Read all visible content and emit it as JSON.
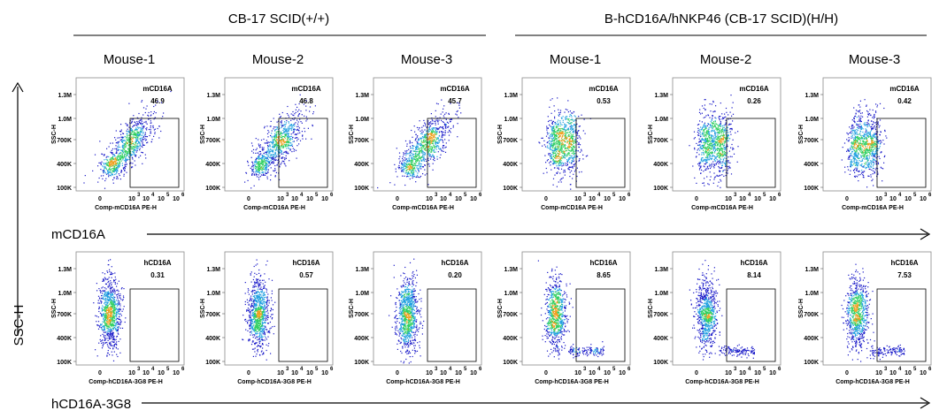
{
  "groups": [
    {
      "label": "CB-17 SCID(+/+)"
    },
    {
      "label": "B-hCD16A/hNKP46 (CB-17 SCID)(H/H)"
    }
  ],
  "mice": [
    "Mouse-1",
    "Mouse-2",
    "Mouse-3",
    "Mouse-1",
    "Mouse-2",
    "Mouse-3"
  ],
  "y_axis_side_label": "SSC-H",
  "rows": [
    {
      "arrow_label": "mCD16A",
      "xaxis_label": "Comp-mCD16A PE-H",
      "gate_name": "mCD16A",
      "gate_values": [
        "46.9",
        "46.8",
        "45.7",
        "0.53",
        "0.26",
        "0.42"
      ]
    },
    {
      "arrow_label": "hCD16A-3G8",
      "xaxis_label": "Comp-hCD16A-3G8 PE-H",
      "gate_name": "hCD16A",
      "gate_values": [
        "0.31",
        "0.57",
        "0.20",
        "8.65",
        "8.14",
        "7.53"
      ]
    }
  ],
  "plot_yaxis_label": "SSC-H",
  "y_ticks": [
    "1.3M",
    "1.0M",
    "700K",
    "400K",
    "100K"
  ],
  "x_ticks": [
    "0",
    "10",
    "10",
    "10",
    "10"
  ],
  "x_tick_exponents": [
    "",
    "3",
    "4",
    "5",
    "6"
  ],
  "colors": {
    "low": "#1818c8",
    "mid": "#20a0e0",
    "high": "#30d060",
    "peak": "#f0a020",
    "gate": "#000000"
  },
  "chart_data": {
    "type": "scatter",
    "description_of_values": "gate percentage per sample",
    "categories": [
      "Mouse-1",
      "Mouse-2",
      "Mouse-3",
      "Mouse-1",
      "Mouse-2",
      "Mouse-3"
    ],
    "series": [
      {
        "name": "mCD16A",
        "values": [
          46.9,
          46.8,
          45.7,
          0.53,
          0.26,
          0.42
        ]
      },
      {
        "name": "hCD16A",
        "values": [
          0.31,
          0.57,
          0.2,
          8.65,
          8.14,
          7.53
        ]
      }
    ]
  }
}
